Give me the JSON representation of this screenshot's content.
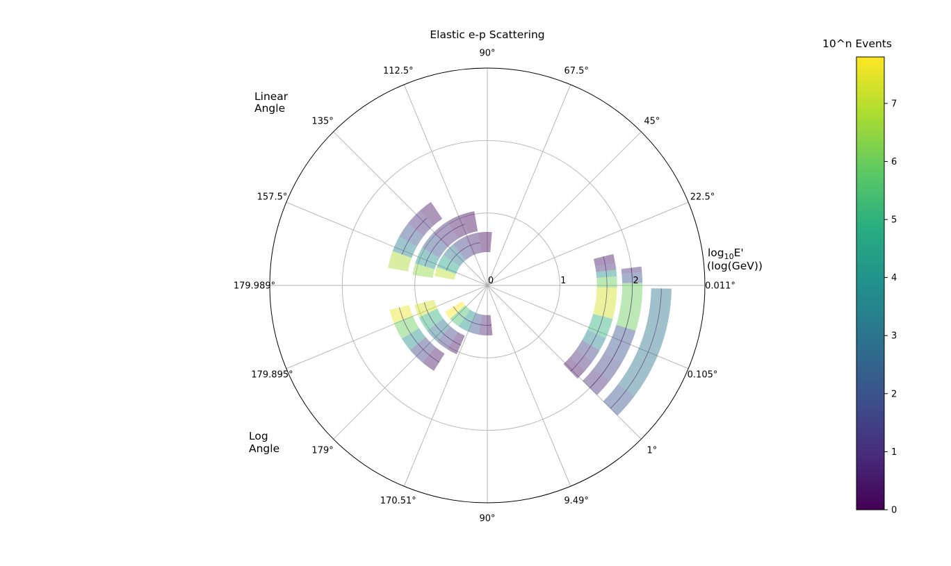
{
  "chart_data": {
    "type": "polar-heatmap",
    "title": "Elastic e-p Scattering",
    "radial_label_line1": "log",
    "radial_label_sub": "10",
    "radial_label_rest": "E'",
    "radial_label_line2": "(log(GeV))",
    "radial_ticks": [
      "0",
      "1",
      "2"
    ],
    "rlim": [
      0,
      3
    ],
    "upper_half_label_line1": "Linear",
    "upper_half_label_line2": "Angle",
    "lower_half_label_line1": "Log",
    "lower_half_label_line2": "Angle",
    "angular_tick_labels": [
      "0.011°",
      "22.5°",
      "45°",
      "67.5°",
      "90°",
      "112.5°",
      "135°",
      "157.5°",
      "179.989°",
      "179.895°",
      "179°",
      "170.51°",
      "90°",
      "9.49°",
      "1°",
      "0.105°"
    ],
    "grid": true,
    "colorbar": {
      "title": "10^n Events",
      "ticks": [
        "0",
        "1",
        "2",
        "3",
        "4",
        "5",
        "6",
        "7"
      ],
      "range": [
        0,
        7.8
      ]
    },
    "series": [
      {
        "cells": [
          {
            "r": 2.4,
            "theta": [
              -45,
              -37
            ],
            "value": 2.0
          },
          {
            "r": 2.4,
            "theta": [
              -37,
              -25
            ],
            "value": 3.0
          },
          {
            "r": 2.4,
            "theta": [
              -25,
              -1
            ],
            "value": 3.0
          }
        ]
      },
      {
        "cells": [
          {
            "r": 2.0,
            "theta": [
              -45,
              -38
            ],
            "value": 1.0
          },
          {
            "r": 2.0,
            "theta": [
              -38,
              -30
            ],
            "value": 1.5
          },
          {
            "r": 2.0,
            "theta": [
              -30,
              -17
            ],
            "value": 2.0
          },
          {
            "r": 2.0,
            "theta": [
              -17,
              -8
            ],
            "value": 6.0
          },
          {
            "r": 2.0,
            "theta": [
              -8,
              1
            ],
            "value": 6.0
          },
          {
            "r": 2.0,
            "theta": [
              1,
              5
            ],
            "value": 2.0
          },
          {
            "r": 2.0,
            "theta": [
              5,
              7
            ],
            "value": 1.0
          }
        ]
      },
      {
        "cells": [
          {
            "r": 1.65,
            "theta": [
              -46,
              -41
            ],
            "value": 0.5
          },
          {
            "r": 1.65,
            "theta": [
              -41,
              -36
            ],
            "value": 1.0
          },
          {
            "r": 1.65,
            "theta": [
              -36,
              -30
            ],
            "value": 1.5
          },
          {
            "r": 1.65,
            "theta": [
              -30,
              -24
            ],
            "value": 3.5
          },
          {
            "r": 1.65,
            "theta": [
              -24,
              -15
            ],
            "value": 5.0
          },
          {
            "r": 1.65,
            "theta": [
              -15,
              -1
            ],
            "value": 7.3
          },
          {
            "r": 1.65,
            "theta": [
              -1,
              4
            ],
            "value": 6.0
          },
          {
            "r": 1.65,
            "theta": [
              4,
              7
            ],
            "value": 4.0
          },
          {
            "r": 1.65,
            "theta": [
              7,
              10
            ],
            "value": 1.0
          },
          {
            "r": 1.65,
            "theta": [
              10,
              14
            ],
            "value": 0.5
          }
        ]
      },
      {
        "cells": [
          {
            "r": 1.25,
            "theta": [
              160,
              170
            ],
            "value": 6.8
          },
          {
            "r": 1.25,
            "theta": [
              151,
              160
            ],
            "value": 3.5
          },
          {
            "r": 1.25,
            "theta": [
              142,
              151
            ],
            "value": 2.0
          },
          {
            "r": 1.25,
            "theta": [
              132,
              142
            ],
            "value": 1.0
          },
          {
            "r": 1.25,
            "theta": [
              124,
              132
            ],
            "value": 0.5
          }
        ]
      },
      {
        "cells": [
          {
            "r": 0.9,
            "theta": [
              163,
              172
            ],
            "value": 6.5
          },
          {
            "r": 0.9,
            "theta": [
              150,
              163
            ],
            "value": 4.0
          },
          {
            "r": 0.9,
            "theta": [
              136,
              150
            ],
            "value": 2.0
          },
          {
            "r": 0.9,
            "theta": [
              122,
              136
            ],
            "value": 1.0
          },
          {
            "r": 0.9,
            "theta": [
              110,
              122
            ],
            "value": 0.5
          },
          {
            "r": 0.9,
            "theta": [
              100,
              110
            ],
            "value": 0.2
          }
        ]
      },
      {
        "cells": [
          {
            "r": 0.6,
            "theta": [
              160,
              170
            ],
            "value": 7.0
          },
          {
            "r": 0.6,
            "theta": [
              145,
              160
            ],
            "value": 4.5
          },
          {
            "r": 0.6,
            "theta": [
              130,
              145
            ],
            "value": 3.0
          },
          {
            "r": 0.6,
            "theta": [
              115,
              130
            ],
            "value": 1.5
          },
          {
            "r": 0.6,
            "theta": [
              100,
              115
            ],
            "value": 0.8
          },
          {
            "r": 0.6,
            "theta": [
              85,
              100
            ],
            "value": 0.2
          }
        ]
      },
      {
        "cells": [
          {
            "r": 1.25,
            "theta": [
              -166,
              -158
            ],
            "value": 7.6
          },
          {
            "r": 1.25,
            "theta": [
              -158,
              -148
            ],
            "value": 6.0
          },
          {
            "r": 1.25,
            "theta": [
              -148,
              -140
            ],
            "value": 4.0
          },
          {
            "r": 1.25,
            "theta": [
              -140,
              -130
            ],
            "value": 1.5
          },
          {
            "r": 1.25,
            "theta": [
              -130,
              -122
            ],
            "value": 0.5
          }
        ]
      },
      {
        "cells": [
          {
            "r": 0.9,
            "theta": [
              -165,
              -155
            ],
            "value": 7.3
          },
          {
            "r": 0.9,
            "theta": [
              -155,
              -143
            ],
            "value": 5.0
          },
          {
            "r": 0.9,
            "theta": [
              -143,
              -132
            ],
            "value": 3.0
          },
          {
            "r": 0.9,
            "theta": [
              -132,
              -122
            ],
            "value": 1.5
          },
          {
            "r": 0.9,
            "theta": [
              -122,
              -114
            ],
            "value": 0.5
          }
        ]
      },
      {
        "cells": [
          {
            "r": 0.55,
            "theta": [
              -148,
              -138
            ],
            "value": 7.8
          },
          {
            "r": 0.55,
            "theta": [
              -138,
              -125
            ],
            "value": 5.5
          },
          {
            "r": 0.55,
            "theta": [
              -125,
              -112
            ],
            "value": 4.0
          },
          {
            "r": 0.55,
            "theta": [
              -112,
              -100
            ],
            "value": 2.0
          },
          {
            "r": 0.55,
            "theta": [
              -100,
              -90
            ],
            "value": 0.8
          },
          {
            "r": 0.55,
            "theta": [
              -90,
              -84
            ],
            "value": 0.2
          }
        ]
      }
    ]
  }
}
